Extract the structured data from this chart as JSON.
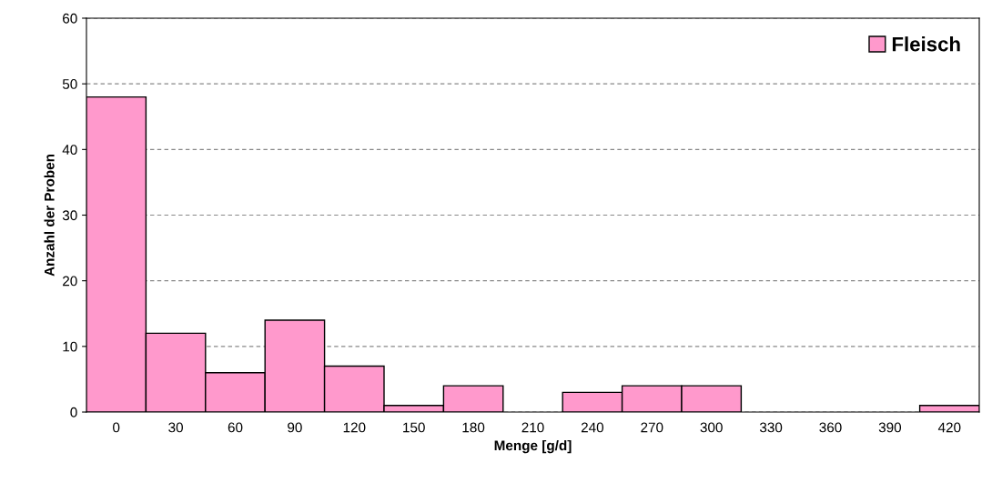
{
  "chart_data": {
    "type": "bar",
    "xlabel": "Menge [g/d]",
    "ylabel": "Anzahl der Proben",
    "categories": [
      "0",
      "30",
      "60",
      "90",
      "120",
      "150",
      "180",
      "210",
      "240",
      "270",
      "300",
      "330",
      "360",
      "390",
      "420"
    ],
    "series": [
      {
        "name": "Fleisch",
        "color": "#ff99cc",
        "values": [
          48,
          12,
          6,
          14,
          7,
          1,
          4,
          0,
          3,
          4,
          4,
          0,
          0,
          0,
          1
        ]
      }
    ],
    "ylim": [
      0,
      60
    ],
    "yticks": [
      0,
      10,
      20,
      30,
      40,
      50,
      60
    ],
    "grid": "y",
    "legend": "top right"
  }
}
